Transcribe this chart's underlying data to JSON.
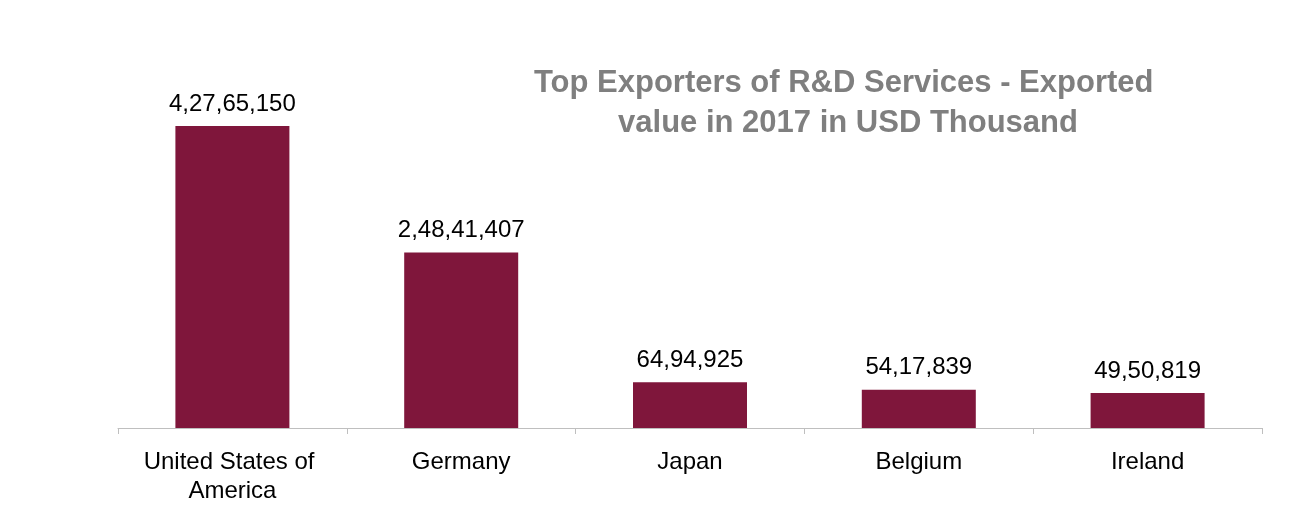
{
  "chart_data": {
    "type": "bar",
    "title": "Top Exporters of R&D Services - Exported value in 2017 in USD Thousand",
    "categories": [
      "United States of America",
      "Germany",
      "Japan",
      "Belgium",
      "Ireland"
    ],
    "values": [
      42765150,
      24841407,
      6494925,
      5417839,
      4950819
    ],
    "value_labels": [
      "4,27,65,150",
      "2,48,41,407",
      "64,94,925",
      "54,17,839",
      "49,50,819"
    ],
    "color": "#7f163b",
    "grid": false
  }
}
